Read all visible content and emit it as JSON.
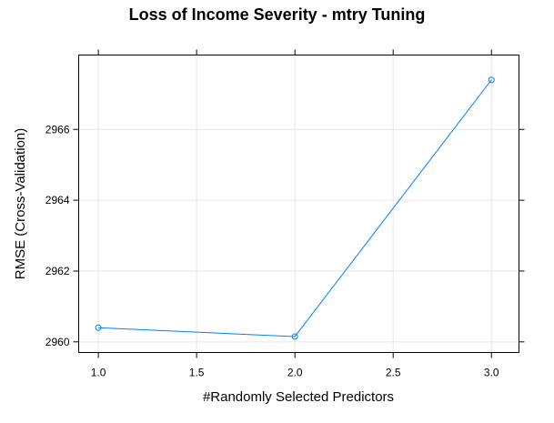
{
  "chart_data": {
    "type": "line",
    "title": "Loss of Income Severity - mtry Tuning",
    "xlabel": "#Randomly Selected Predictors",
    "ylabel": "RMSE (Cross-Validation)",
    "x": [
      1.0,
      2.0,
      3.0
    ],
    "series": [
      {
        "values": [
          2960.4,
          2960.15,
          2967.4
        ],
        "color": "#0080ff"
      }
    ],
    "xlim": [
      0.9,
      3.14
    ],
    "ylim": [
      2959.7,
      2968.1
    ],
    "xticks": [
      1.0,
      1.5,
      2.0,
      2.5,
      3.0
    ],
    "xtick_labels": [
      "1.0",
      "1.5",
      "2.0",
      "2.5",
      "3.0"
    ],
    "yticks": [
      2960,
      2962,
      2964,
      2966
    ],
    "ytick_labels": [
      "2960",
      "2962",
      "2964",
      "2966"
    ],
    "grid": true,
    "marker": "open-circle"
  }
}
